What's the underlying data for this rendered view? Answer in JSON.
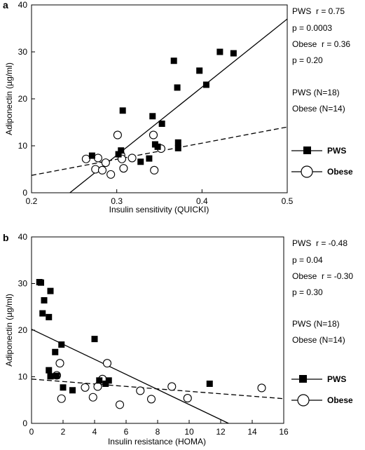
{
  "chart_data": [
    {
      "panel": "a",
      "type": "scatter",
      "xlabel": "Insulin sensitivity (QUICKI)",
      "ylabel": "Adiponectin (µg/ml)",
      "xlim": [
        0.2,
        0.5
      ],
      "ylim": [
        0,
        40
      ],
      "xticks": [
        "0.2",
        "0.3",
        "0.4",
        "0.5"
      ],
      "yticks": [
        "0",
        "10",
        "20",
        "30",
        "40"
      ],
      "series": [
        {
          "name": "PWS",
          "marker": "filled-square",
          "line": "solid",
          "fit": [
            [
              0.245,
              0
            ],
            [
              0.5,
              37
            ]
          ],
          "points": [
            [
              0.271,
              7.9
            ],
            [
              0.302,
              8.2
            ],
            [
              0.305,
              9.0
            ],
            [
              0.307,
              17.5
            ],
            [
              0.328,
              6.6
            ],
            [
              0.338,
              7.3
            ],
            [
              0.342,
              16.3
            ],
            [
              0.345,
              10.3
            ],
            [
              0.348,
              9.8
            ],
            [
              0.353,
              14.7
            ],
            [
              0.367,
              28.1
            ],
            [
              0.371,
              22.4
            ],
            [
              0.372,
              10.7
            ],
            [
              0.372,
              9.5
            ],
            [
              0.397,
              26.0
            ],
            [
              0.405,
              23.0
            ],
            [
              0.421,
              30.0
            ],
            [
              0.437,
              29.7
            ]
          ]
        },
        {
          "name": "Obese",
          "marker": "open-circle",
          "line": "dashed",
          "fit": [
            [
              0.2,
              3.7
            ],
            [
              0.5,
              14.0
            ]
          ],
          "points": [
            [
              0.264,
              7.2
            ],
            [
              0.275,
              5.0
            ],
            [
              0.278,
              7.4
            ],
            [
              0.283,
              4.8
            ],
            [
              0.287,
              6.4
            ],
            [
              0.293,
              3.9
            ],
            [
              0.301,
              12.3
            ],
            [
              0.305,
              8.0
            ],
            [
              0.306,
              7.2
            ],
            [
              0.308,
              5.2
            ],
            [
              0.318,
              7.4
            ],
            [
              0.343,
              12.3
            ],
            [
              0.344,
              4.8
            ],
            [
              0.352,
              9.4
            ]
          ]
        }
      ],
      "stats": [
        "PWS  r = 0.75",
        "p = 0.0003",
        "Obese  r = 0.36",
        "p = 0.20"
      ],
      "counts": [
        "PWS (N=18)",
        "Obese (N=14)"
      ],
      "legend": {
        "placement": "right",
        "labels": [
          "PWS",
          "Obese"
        ]
      }
    },
    {
      "panel": "b",
      "type": "scatter",
      "xlabel": "Insulin resistance (HOMA)",
      "ylabel": "Adiponectin (µg/ml)",
      "xlim": [
        0,
        16
      ],
      "ylim": [
        0,
        40
      ],
      "xticks": [
        "0",
        "2",
        "4",
        "6",
        "8",
        "10",
        "12",
        "14",
        "16"
      ],
      "yticks": [
        "0",
        "10",
        "20",
        "30",
        "40"
      ],
      "series": [
        {
          "name": "PWS",
          "marker": "filled-square",
          "line": "solid",
          "fit": [
            [
              0,
              20.2
            ],
            [
              12.5,
              0
            ]
          ],
          "points": [
            [
              0.5,
              30.3
            ],
            [
              0.6,
              30.2
            ],
            [
              0.7,
              23.6
            ],
            [
              0.8,
              26.4
            ],
            [
              1.1,
              22.8
            ],
            [
              1.2,
              28.4
            ],
            [
              1.1,
              11.4
            ],
            [
              1.2,
              10.1
            ],
            [
              1.5,
              15.3
            ],
            [
              1.6,
              10.2
            ],
            [
              1.9,
              16.9
            ],
            [
              2.0,
              7.7
            ],
            [
              2.6,
              7.1
            ],
            [
              4.0,
              18.1
            ],
            [
              4.3,
              9.2
            ],
            [
              4.7,
              8.5
            ],
            [
              4.9,
              9.2
            ],
            [
              11.3,
              8.5
            ]
          ]
        },
        {
          "name": "Obese",
          "marker": "open-circle",
          "line": "dashed",
          "fit": [
            [
              0,
              9.5
            ],
            [
              16,
              5.3
            ]
          ],
          "points": [
            [
              1.6,
              10.3
            ],
            [
              1.8,
              12.9
            ],
            [
              1.9,
              5.3
            ],
            [
              3.4,
              7.7
            ],
            [
              3.9,
              5.6
            ],
            [
              4.2,
              7.9
            ],
            [
              4.5,
              9.5
            ],
            [
              4.8,
              12.9
            ],
            [
              5.6,
              4.0
            ],
            [
              6.9,
              7.0
            ],
            [
              7.6,
              5.2
            ],
            [
              8.9,
              7.9
            ],
            [
              9.9,
              5.4
            ],
            [
              14.6,
              7.6
            ]
          ]
        }
      ],
      "stats": [
        "PWS  r = -0.48",
        "p = 0.04",
        "Obese  r = -0.30",
        "p = 0.30"
      ],
      "counts": [
        "PWS (N=18)",
        "Obese (N=14)"
      ],
      "legend": {
        "placement": "right",
        "labels": [
          "PWS",
          "Obese"
        ]
      }
    }
  ]
}
